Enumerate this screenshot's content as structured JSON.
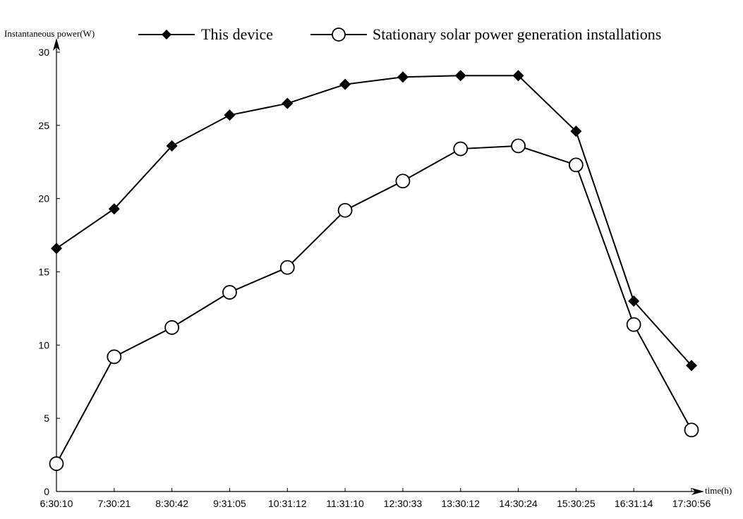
{
  "chart_data": {
    "type": "line",
    "ylabel": "Instantaneous power(W)",
    "xlabel": "time(h)",
    "categories": [
      "6:30:10",
      "7:30:21",
      "8:30:42",
      "9:31:05",
      "10:31:12",
      "11:31:10",
      "12:30:33",
      "13:30:12",
      "14:30:24",
      "15:30:25",
      "16:31:14",
      "17:30:56"
    ],
    "yticks": [
      "0",
      "5",
      "10",
      "15",
      "20",
      "25",
      "30"
    ],
    "ylim": [
      0,
      30
    ],
    "grid": false,
    "legend_position": "top",
    "series": [
      {
        "name": "This device",
        "marker": "diamond-filled",
        "color": "#000000",
        "values": [
          16.6,
          19.3,
          23.6,
          25.7,
          26.5,
          27.8,
          28.3,
          28.4,
          28.4,
          24.6,
          13.0,
          8.6
        ]
      },
      {
        "name": "Stationary solar power generation installations",
        "marker": "circle-open",
        "color": "#000000",
        "values": [
          1.9,
          9.2,
          11.2,
          13.6,
          15.3,
          19.2,
          21.2,
          23.4,
          23.6,
          22.3,
          11.4,
          4.2
        ]
      }
    ]
  }
}
